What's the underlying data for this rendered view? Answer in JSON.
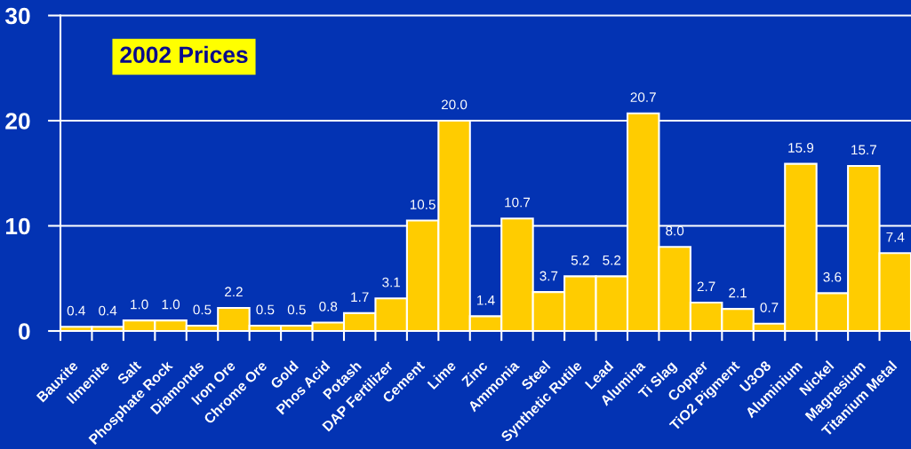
{
  "chart_data": {
    "type": "bar",
    "title": "2002 Prices",
    "categories": [
      "Bauxite",
      "Ilmenite",
      "Salt",
      "Phosphate Rock",
      "Diamonds",
      "Iron Ore",
      "Chrome Ore",
      "Gold",
      "Phos Acid",
      "Potash",
      "DAP Fertilizer",
      "Cement",
      "Lime",
      "Zinc",
      "Ammonia",
      "Steel",
      "Synthetic Rutile",
      "Lead",
      "Alumina",
      "Ti Slag",
      "Copper",
      "TiO2 Pigment",
      "U3O8",
      "Aluminium",
      "Nickel",
      "Magnesium",
      "Titanium Metal"
    ],
    "values": [
      0.4,
      0.4,
      1.0,
      1.0,
      0.5,
      2.2,
      0.5,
      0.5,
      0.8,
      1.7,
      3.1,
      10.5,
      20.0,
      1.4,
      10.7,
      3.7,
      5.2,
      5.2,
      20.7,
      8.0,
      2.7,
      2.1,
      0.7,
      15.9,
      3.6,
      15.7,
      7.4
    ],
    "value_labels": [
      "0.4",
      "0.4",
      "1.0",
      "1.0",
      "0.5",
      "2.2",
      "0.5",
      "0.5",
      "0.8",
      "1.7",
      "3.1",
      "10.5",
      "20.0",
      "1.4",
      "10.7",
      "3.7",
      "5.2",
      "5.2",
      "20.7",
      "8.0",
      "2.7",
      "2.1",
      "0.7",
      "15.9",
      "3.6",
      "15.7",
      "7.4"
    ],
    "color": "#ffcc00",
    "ylim": [
      0,
      30
    ],
    "yticks": [
      0,
      10,
      20,
      30
    ],
    "grid": "y"
  }
}
